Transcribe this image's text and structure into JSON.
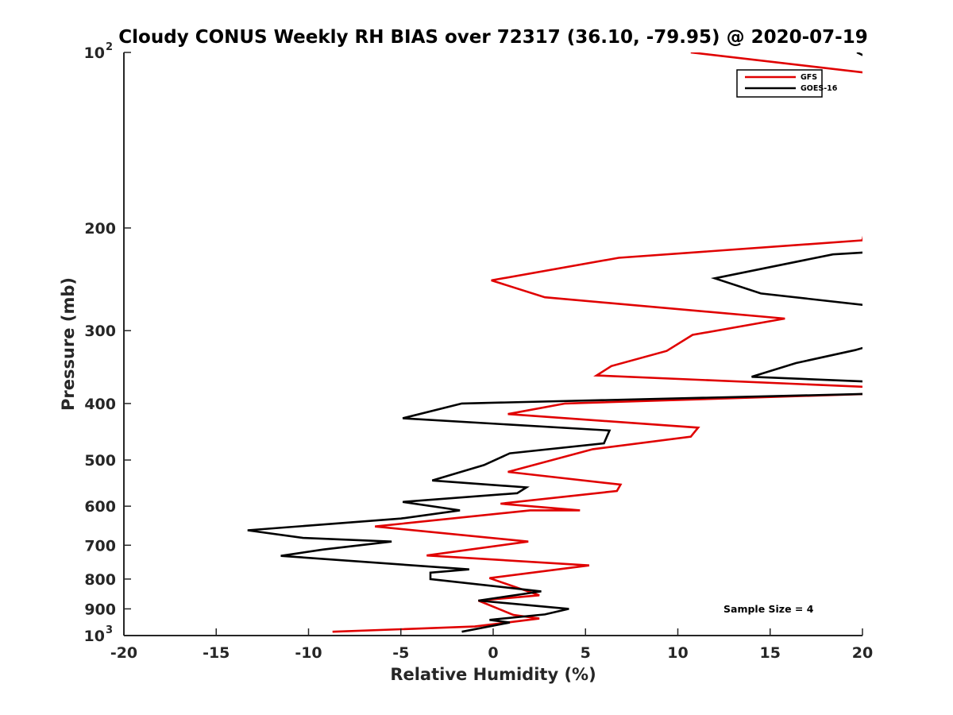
{
  "chart_data": {
    "type": "line",
    "title": "Cloudy CONUS Weekly RH BIAS over 72317 (36.10, -79.95) @ 2020-07-19",
    "xlabel": "Relative Humidity (%)",
    "ylabel": "Pressure (mb)",
    "xlim": [
      -20,
      20
    ],
    "ylim": [
      100,
      1000
    ],
    "y_scale": "log",
    "y_reversed": true,
    "grid": false,
    "legend_position": "top-right",
    "annotation": "Sample Size = 4",
    "x_ticks": [
      "-20",
      "-15",
      "-10",
      "-5",
      "0",
      "5",
      "10",
      "15",
      "20"
    ],
    "y_ticks": [
      {
        "value": 100,
        "label": "10",
        "sup": "2"
      },
      {
        "value": 200,
        "label": "200",
        "sup": ""
      },
      {
        "value": 300,
        "label": "300",
        "sup": ""
      },
      {
        "value": 400,
        "label": "400",
        "sup": ""
      },
      {
        "value": 500,
        "label": "500",
        "sup": ""
      },
      {
        "value": 600,
        "label": "600",
        "sup": ""
      },
      {
        "value": 700,
        "label": "700",
        "sup": ""
      },
      {
        "value": 800,
        "label": "800",
        "sup": ""
      },
      {
        "value": 900,
        "label": "900",
        "sup": ""
      },
      {
        "value": 1000,
        "label": "10",
        "sup": "3"
      }
    ],
    "series": [
      {
        "name": "GFS",
        "color": "#e00000",
        "points": [
          [
            10.7,
            100
          ],
          [
            22,
            110
          ],
          [
            20,
            210
          ],
          [
            6.8,
            225
          ],
          [
            -0.1,
            246
          ],
          [
            2.8,
            263
          ],
          [
            15.8,
            286
          ],
          [
            10.8,
            305
          ],
          [
            9.4,
            325
          ],
          [
            6.4,
            345
          ],
          [
            5.6,
            358
          ],
          [
            20.5,
            375
          ],
          [
            20.5,
            385
          ],
          [
            3.9,
            400
          ],
          [
            0.8,
            417
          ],
          [
            11.1,
            440
          ],
          [
            10.7,
            456
          ],
          [
            5.4,
            479
          ],
          [
            0.8,
            524
          ],
          [
            6.9,
            551
          ],
          [
            6.7,
            565
          ],
          [
            0.4,
            594
          ],
          [
            4.7,
            610
          ],
          [
            2.0,
            610
          ],
          [
            -6.4,
            650
          ],
          [
            1.9,
            690
          ],
          [
            -3.6,
            729
          ],
          [
            5.2,
            758
          ],
          [
            -0.2,
            797
          ],
          [
            2.5,
            853
          ],
          [
            -0.8,
            871
          ],
          [
            1.1,
            922
          ],
          [
            2.5,
            935
          ],
          [
            -1.0,
            965
          ],
          [
            -8.7,
            985
          ]
        ]
      },
      {
        "name": "GOES-16",
        "color": "#000000",
        "points": [
          [
            19.7,
            100
          ],
          [
            20.3,
            102
          ],
          [
            20.5,
            220
          ],
          [
            18.4,
            222
          ],
          [
            12.0,
            244
          ],
          [
            14.5,
            259
          ],
          [
            20.5,
            272
          ],
          [
            20.5,
            318
          ],
          [
            19.6,
            324
          ],
          [
            16.4,
            341
          ],
          [
            14.0,
            360
          ],
          [
            20.5,
            367
          ],
          [
            20.5,
            385
          ],
          [
            -1.7,
            400
          ],
          [
            -4.9,
            424
          ],
          [
            6.3,
            445
          ],
          [
            6.0,
            468
          ],
          [
            0.9,
            487
          ],
          [
            -0.5,
            510
          ],
          [
            -3.3,
            542
          ],
          [
            1.8,
            557
          ],
          [
            1.3,
            570
          ],
          [
            -4.9,
            590
          ],
          [
            -1.8,
            610
          ],
          [
            -5.0,
            630
          ],
          [
            -13.3,
            660
          ],
          [
            -10.3,
            680
          ],
          [
            -5.5,
            690
          ],
          [
            -9.2,
            712
          ],
          [
            -11.5,
            730
          ],
          [
            -1.3,
            770
          ],
          [
            -3.4,
            780
          ],
          [
            -3.4,
            800
          ],
          [
            2.6,
            840
          ],
          [
            -0.8,
            871
          ],
          [
            4.1,
            900
          ],
          [
            2.8,
            920
          ],
          [
            -0.2,
            940
          ],
          [
            0.9,
            950
          ],
          [
            -1.7,
            985
          ]
        ]
      }
    ]
  }
}
